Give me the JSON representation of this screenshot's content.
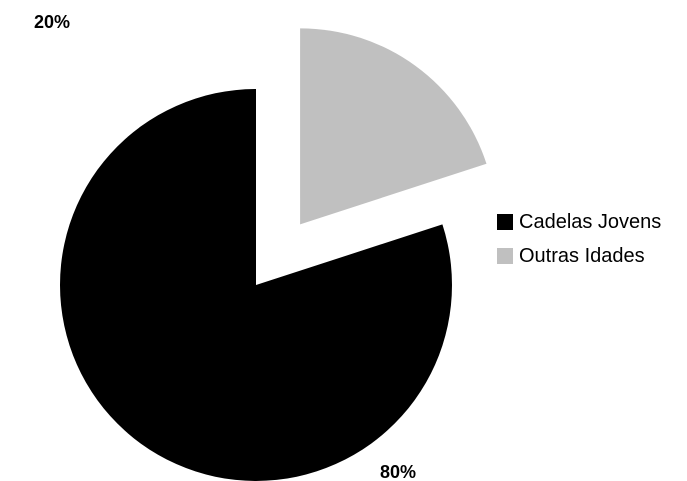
{
  "chart_data": {
    "type": "pie",
    "title": "",
    "slices": [
      {
        "label": "Cadelas Jovens",
        "value": 80,
        "data_label": "80%",
        "color": "#000000",
        "exploded": false
      },
      {
        "label": "Outras Idades",
        "value": 20,
        "data_label": "20%",
        "color": "#c0c0c0",
        "exploded": true
      }
    ],
    "start_angle_deg": 0,
    "direction": "clockwise",
    "legend_position": "right"
  }
}
